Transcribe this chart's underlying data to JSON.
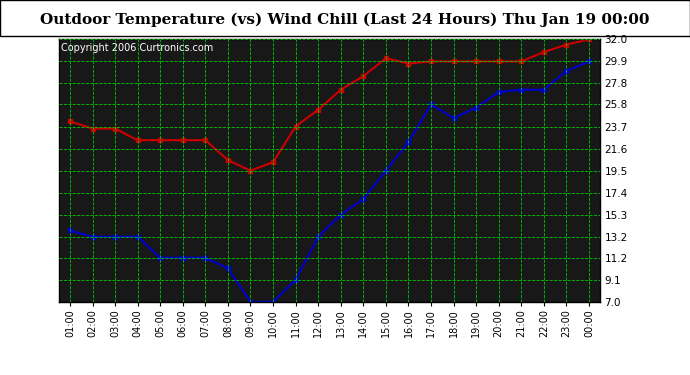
{
  "title": "Outdoor Temperature (vs) Wind Chill (Last 24 Hours) Thu Jan 19 00:00",
  "copyright": "Copyright 2006 Curtronics.com",
  "x_labels": [
    "01:00",
    "02:00",
    "03:00",
    "04:00",
    "05:00",
    "06:00",
    "07:00",
    "08:00",
    "09:00",
    "10:00",
    "11:00",
    "12:00",
    "13:00",
    "14:00",
    "15:00",
    "16:00",
    "17:00",
    "18:00",
    "19:00",
    "20:00",
    "21:00",
    "22:00",
    "23:00",
    "00:00"
  ],
  "temp_data": [
    24.2,
    23.5,
    23.5,
    22.4,
    22.4,
    22.4,
    22.4,
    20.5,
    19.5,
    20.3,
    23.7,
    25.3,
    27.2,
    28.5,
    30.2,
    29.7,
    29.9,
    29.9,
    29.9,
    29.9,
    29.9,
    30.8,
    31.5,
    32.0
  ],
  "wind_chill_data": [
    13.8,
    13.2,
    13.2,
    13.2,
    11.2,
    11.2,
    11.2,
    10.2,
    7.0,
    7.0,
    9.1,
    13.2,
    15.3,
    16.8,
    19.5,
    22.2,
    25.8,
    24.5,
    25.5,
    27.0,
    27.2,
    27.2,
    29.0,
    29.9
  ],
  "y_ticks": [
    7.0,
    9.1,
    11.2,
    13.2,
    15.3,
    17.4,
    19.5,
    21.6,
    23.7,
    25.8,
    27.8,
    29.9,
    32.0
  ],
  "y_min": 7.0,
  "y_max": 32.0,
  "temp_color": "#cc0000",
  "wind_chill_color": "#0000cc",
  "plot_bg_color": "#181818",
  "grid_color": "#00cc00",
  "title_fontsize": 11,
  "copyright_fontsize": 7,
  "marker": "s",
  "marker_size": 3.0,
  "line_width": 1.5
}
